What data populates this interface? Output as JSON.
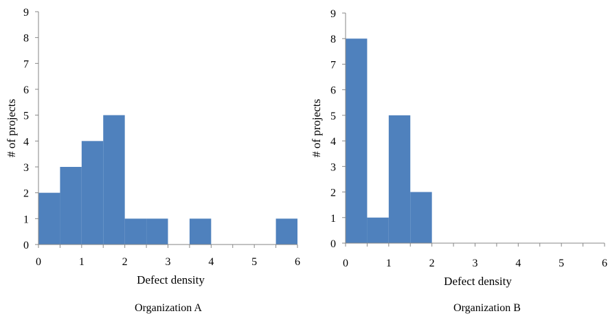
{
  "chart_data": [
    {
      "type": "bar",
      "caption": "Organization A",
      "xlabel": "Defect density",
      "ylabel": "# of projects",
      "xlim": [
        0,
        6
      ],
      "ylim": [
        0,
        9
      ],
      "x_ticks": [
        "0",
        "1",
        "2",
        "3",
        "4",
        "5",
        "6"
      ],
      "y_ticks": [
        "0",
        "1",
        "2",
        "3",
        "4",
        "5",
        "6",
        "7",
        "8",
        "9"
      ],
      "bin_width": 0.5,
      "bin_starts": [
        0,
        0.5,
        1,
        1.5,
        2,
        2.5,
        3,
        3.5,
        4,
        4.5,
        5,
        5.5
      ],
      "values": [
        2,
        3,
        4,
        5,
        1,
        1,
        0,
        1,
        0,
        0,
        0,
        1
      ],
      "grid": false,
      "bar_color": "#4f81bd"
    },
    {
      "type": "bar",
      "caption": "Organization B",
      "xlabel": "Defect density",
      "ylabel": "# of projects",
      "xlim": [
        0,
        6
      ],
      "ylim": [
        0,
        9
      ],
      "x_ticks": [
        "0",
        "1",
        "2",
        "3",
        "4",
        "5",
        "6"
      ],
      "y_ticks": [
        "0",
        "1",
        "2",
        "3",
        "4",
        "5",
        "6",
        "7",
        "8",
        "9"
      ],
      "bin_width": 0.5,
      "bin_starts": [
        0,
        0.5,
        1,
        1.5,
        2,
        2.5,
        3,
        3.5,
        4,
        4.5,
        5,
        5.5
      ],
      "values": [
        8,
        1,
        5,
        2,
        0,
        0,
        0,
        0,
        0,
        0,
        0,
        0
      ],
      "grid": false,
      "bar_color": "#4f81bd"
    }
  ]
}
